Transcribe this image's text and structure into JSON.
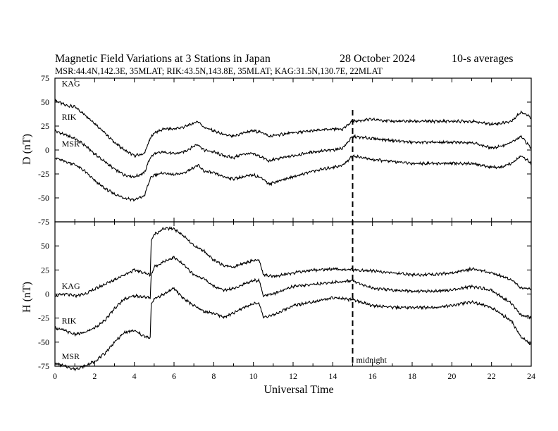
{
  "header": {
    "title": "Magnetic Field Variations at 3 Stations in Japan",
    "date": "28 October 2024",
    "averaging": "10-s averages",
    "stations_line": "MSR:44.4N,142.3E, 35MLAT;  RIK:43.5N,143.8E, 35MLAT;  KAG:31.5N,130.7E, 22MLAT"
  },
  "annotations": {
    "midnight_label": "midnight",
    "midnight_ut": 15
  },
  "chart_data": [
    {
      "type": "line",
      "panel": "D",
      "ylabel": "D (nT)",
      "xlabel": "",
      "ylim": [
        -75,
        75
      ],
      "xlim": [
        0,
        24
      ],
      "yticks": [
        -75,
        -50,
        -25,
        0,
        25,
        50,
        75
      ],
      "xticks": [
        0,
        2,
        4,
        6,
        8,
        10,
        12,
        14,
        16,
        18,
        20,
        22,
        24
      ],
      "series": [
        {
          "name": "KAG",
          "color": "#000000",
          "x": [
            0,
            0.5,
            1,
            1.5,
            2,
            2.5,
            3,
            3.5,
            4,
            4.5,
            4.8,
            5,
            5.5,
            6,
            6.5,
            7,
            7.2,
            7.5,
            8,
            8.5,
            9,
            9.5,
            10,
            10.5,
            10.8,
            11,
            12,
            13,
            14,
            14.5,
            15,
            16,
            17,
            18,
            19,
            20,
            21,
            22,
            22.5,
            23,
            23.5,
            24
          ],
          "values": [
            52,
            47,
            45,
            37,
            28,
            18,
            8,
            0,
            -6,
            -4,
            12,
            18,
            22,
            22,
            24,
            28,
            30,
            24,
            20,
            16,
            14,
            18,
            20,
            18,
            14,
            15,
            18,
            20,
            22,
            22,
            30,
            32,
            30,
            30,
            30,
            30,
            30,
            27,
            28,
            30,
            40,
            34
          ]
        },
        {
          "name": "RIK",
          "color": "#000000",
          "x": [
            0,
            0.5,
            1,
            1.5,
            2,
            2.5,
            3,
            3.5,
            4,
            4.5,
            4.8,
            5,
            5.5,
            6,
            6.5,
            7,
            7.2,
            7.5,
            8,
            8.5,
            9,
            9.5,
            10,
            10.5,
            10.8,
            11,
            12,
            13,
            14,
            14.5,
            15,
            16,
            17,
            18,
            19,
            20,
            21,
            22,
            22.5,
            23,
            23.5,
            24
          ],
          "values": [
            20,
            16,
            12,
            5,
            -4,
            -12,
            -20,
            -26,
            -28,
            -24,
            -8,
            -4,
            -2,
            -4,
            -2,
            4,
            6,
            0,
            -2,
            -6,
            -8,
            -4,
            -4,
            -8,
            -12,
            -10,
            -6,
            -2,
            0,
            2,
            14,
            12,
            10,
            8,
            8,
            8,
            8,
            2,
            4,
            8,
            14,
            2
          ]
        },
        {
          "name": "MSR",
          "color": "#000000",
          "x": [
            0,
            0.5,
            1,
            1.5,
            2,
            2.5,
            3,
            3.5,
            4,
            4.5,
            4.8,
            5,
            5.5,
            6,
            6.5,
            7,
            7.2,
            7.5,
            8,
            8.5,
            9,
            9.5,
            10,
            10.5,
            10.8,
            11,
            12,
            13,
            14,
            14.5,
            15,
            16,
            17,
            18,
            19,
            20,
            21,
            22,
            22.5,
            23,
            23.5,
            24
          ],
          "values": [
            -8,
            -12,
            -15,
            -22,
            -32,
            -40,
            -46,
            -50,
            -52,
            -48,
            -30,
            -26,
            -24,
            -26,
            -24,
            -18,
            -16,
            -22,
            -24,
            -28,
            -30,
            -28,
            -26,
            -30,
            -36,
            -34,
            -28,
            -22,
            -18,
            -16,
            -6,
            -10,
            -12,
            -14,
            -14,
            -14,
            -14,
            -18,
            -18,
            -14,
            -6,
            -14
          ]
        }
      ],
      "series_labels": [
        "KAG",
        "RIK",
        "MSR"
      ]
    },
    {
      "type": "line",
      "panel": "H",
      "ylabel": "H (nT)",
      "xlabel": "Universal Time",
      "ylim": [
        -75,
        75
      ],
      "xlim": [
        0,
        24
      ],
      "yticks": [
        -75,
        -50,
        -25,
        0,
        25,
        50
      ],
      "xticks": [
        0,
        2,
        4,
        6,
        8,
        10,
        12,
        14,
        16,
        18,
        20,
        22,
        24
      ],
      "series": [
        {
          "name": "KAG",
          "color": "#000000",
          "x": [
            0,
            0.5,
            1,
            1.5,
            2,
            2.5,
            3,
            3.5,
            4,
            4.5,
            4.8,
            4.85,
            5,
            5.5,
            6,
            6.5,
            7,
            7.5,
            8,
            8.5,
            9,
            9.5,
            10,
            10.3,
            10.5,
            11,
            12,
            13,
            14,
            15,
            16,
            17,
            18,
            19,
            20,
            21,
            22,
            23,
            23.5,
            24
          ],
          "values": [
            -2,
            0,
            -2,
            0,
            5,
            10,
            15,
            20,
            25,
            22,
            20,
            55,
            62,
            68,
            68,
            60,
            50,
            45,
            35,
            30,
            28,
            32,
            35,
            35,
            20,
            18,
            22,
            25,
            26,
            25,
            24,
            22,
            20,
            20,
            22,
            26,
            22,
            15,
            6,
            5
          ]
        },
        {
          "name": "RIK",
          "color": "#000000",
          "x": [
            0,
            0.5,
            1,
            1.5,
            2,
            2.5,
            3,
            3.5,
            4,
            4.5,
            4.8,
            4.85,
            5,
            5.5,
            6,
            6.5,
            7,
            7.5,
            8,
            8.5,
            9,
            9.5,
            10,
            10.3,
            10.5,
            11,
            12,
            13,
            14,
            15,
            16,
            17,
            18,
            19,
            20,
            21,
            22,
            23,
            23.5,
            24
          ],
          "values": [
            -35,
            -38,
            -42,
            -40,
            -35,
            -28,
            -15,
            -5,
            -2,
            -3,
            -4,
            20,
            28,
            34,
            38,
            30,
            20,
            16,
            8,
            4,
            6,
            10,
            14,
            14,
            -2,
            0,
            8,
            10,
            12,
            14,
            6,
            4,
            3,
            3,
            4,
            8,
            4,
            -10,
            -22,
            -24
          ]
        },
        {
          "name": "MSR",
          "color": "#000000",
          "x": [
            0,
            0.5,
            1,
            1.5,
            2,
            2.5,
            3,
            3.5,
            4,
            4.5,
            4.8,
            4.85,
            5,
            5.5,
            6,
            6.5,
            7,
            7.5,
            8,
            8.5,
            9,
            9.5,
            10,
            10.3,
            10.5,
            11,
            12,
            13,
            14,
            15,
            16,
            17,
            18,
            19,
            20,
            21,
            22,
            23,
            23.5,
            24
          ],
          "values": [
            -72,
            -75,
            -78,
            -75,
            -70,
            -62,
            -50,
            -40,
            -38,
            -44,
            -46,
            -10,
            -5,
            0,
            6,
            -5,
            -12,
            -18,
            -20,
            -24,
            -20,
            -14,
            -10,
            -10,
            -24,
            -22,
            -12,
            -8,
            -4,
            -6,
            -12,
            -14,
            -14,
            -14,
            -12,
            -8,
            -14,
            -28,
            -45,
            -52
          ]
        }
      ],
      "series_labels": [
        "KAG",
        "RIK",
        "MSR"
      ]
    }
  ]
}
